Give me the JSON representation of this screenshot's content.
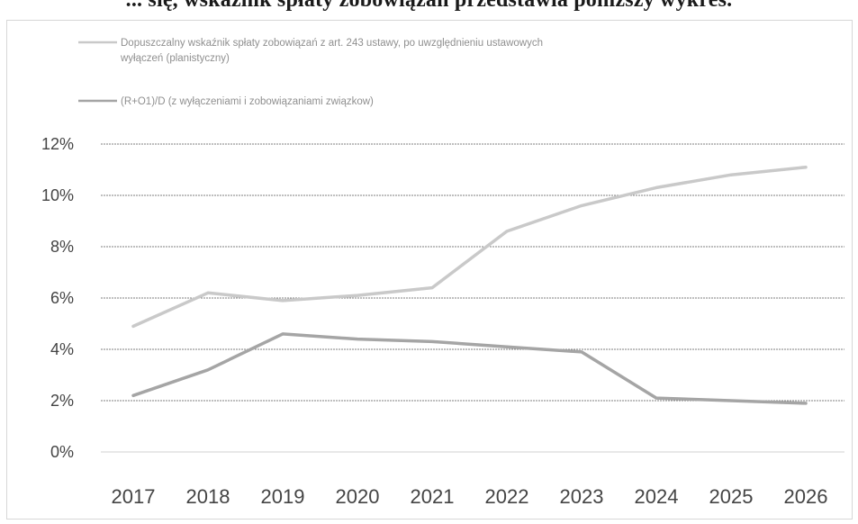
{
  "page": {
    "heading_fragment": "... się, wskaźnik spłaty zobowiązań przedstawia poniższy wykres."
  },
  "chart_data": {
    "type": "line",
    "title": "",
    "xlabel": "",
    "ylabel": "",
    "x": [
      "2017",
      "2018",
      "2019",
      "2020",
      "2021",
      "2022",
      "2023",
      "2024",
      "2025",
      "2026"
    ],
    "ylim": [
      0,
      12
    ],
    "yticks": [
      {
        "value": 0,
        "label": "0%"
      },
      {
        "value": 2,
        "label": "2%"
      },
      {
        "value": 4,
        "label": "4%"
      },
      {
        "value": 6,
        "label": "6%"
      },
      {
        "value": 8,
        "label": "8%"
      },
      {
        "value": 10,
        "label": "10%"
      },
      {
        "value": 12,
        "label": "12%"
      }
    ],
    "grid": true,
    "legend_position": "top",
    "series": [
      {
        "name": "Dopuszczalny wskaźnik spłaty zobowiązań z art. 243 ustawy, po uwzględnieniu ustawowych wyłączeń (planistyczny)",
        "legend_line1": "Dopuszczalny wskaźnik spłaty zobowiązań z art. 243 ustawy, po uwzględnieniu ustawowych",
        "legend_line2": "wyłączeń (planistyczny)",
        "color": "#c9c9c9",
        "values": [
          4.9,
          6.2,
          5.9,
          6.1,
          6.4,
          8.6,
          9.6,
          10.3,
          10.8,
          11.1
        ]
      },
      {
        "name": "(R+O1)/D (z wyłączeniami i zobowiązaniami związkow)",
        "legend_line1": "(R+O1)/D (z wyłączeniami i zobowiązaniami związkow)",
        "color": "#a5a5a5",
        "values": [
          2.2,
          3.2,
          4.6,
          4.4,
          4.3,
          4.1,
          3.9,
          2.1,
          2.0,
          1.9
        ]
      }
    ]
  }
}
